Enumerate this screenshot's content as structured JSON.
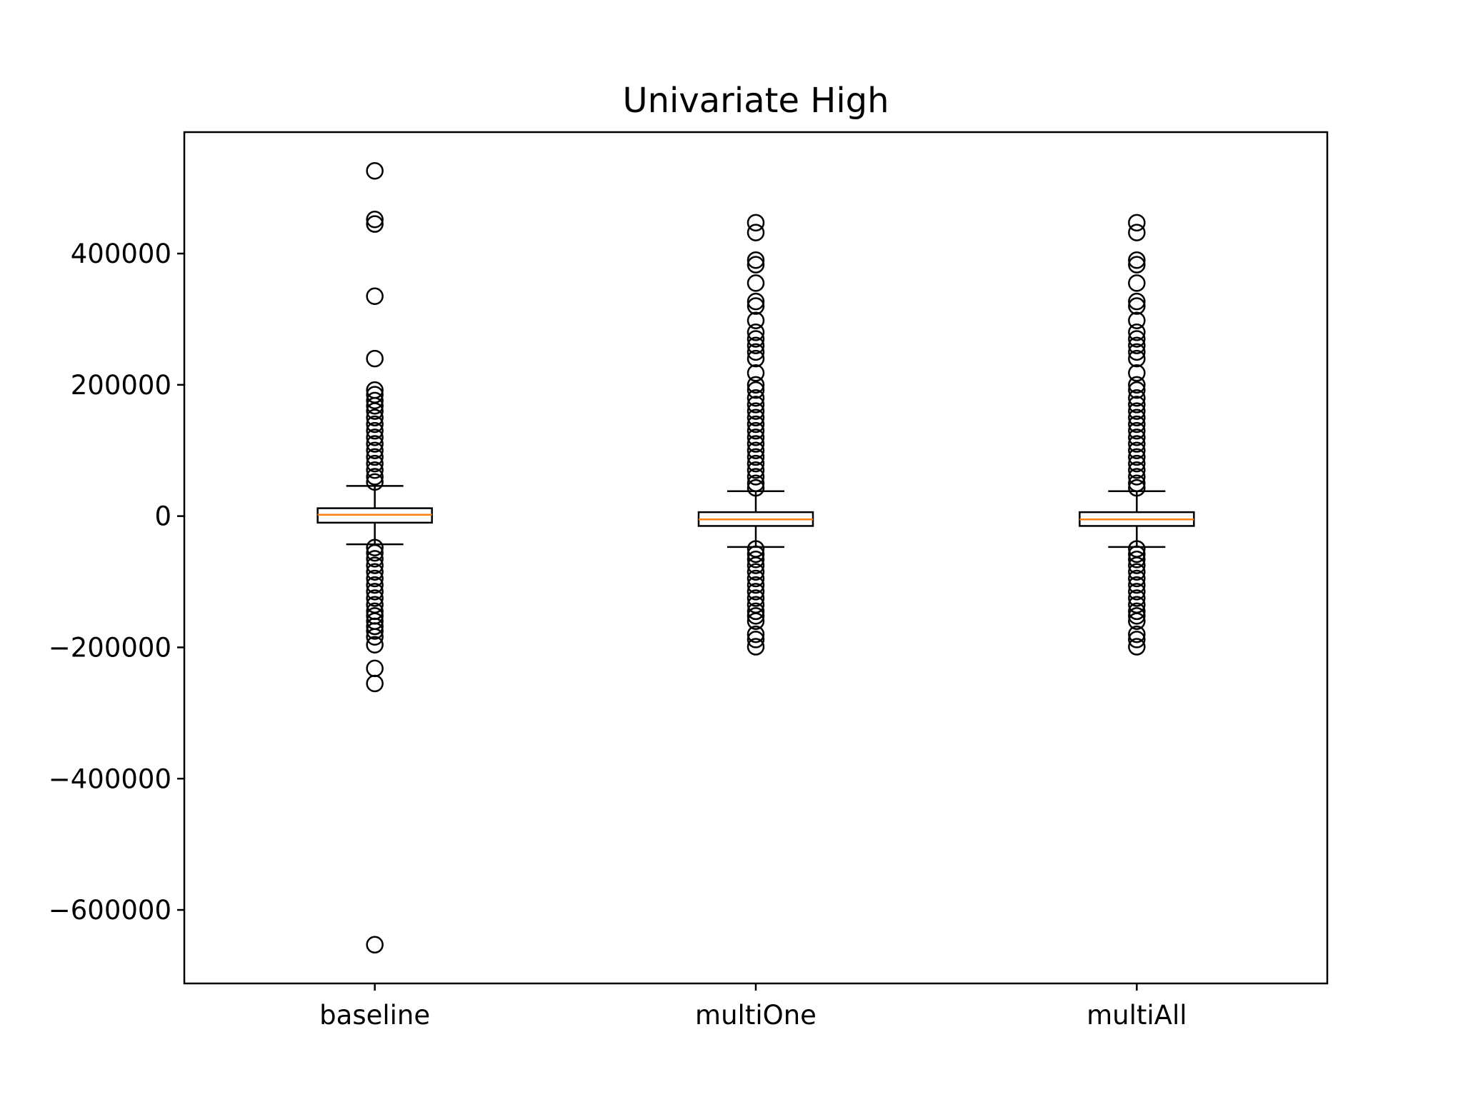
{
  "chart_data": {
    "type": "box",
    "title": "Univariate High",
    "xlabel": "",
    "ylabel": "",
    "categories": [
      "baseline",
      "multiOne",
      "multiAll"
    ],
    "ylim": [
      -712000,
      585000
    ],
    "yticks": [
      400000,
      200000,
      0,
      -200000,
      -400000,
      -600000
    ],
    "ytick_labels": [
      "400000",
      "200000",
      "0",
      "−200000",
      "−400000",
      "−600000"
    ],
    "grid": false,
    "colors": {
      "box": "#000000",
      "median": "#ff7f0e",
      "flier": "#000000"
    },
    "boxes": [
      {
        "name": "baseline",
        "q1": -10000,
        "median": 2000,
        "q3": 12000,
        "whisker_low": -43000,
        "whisker_high": 46000,
        "fliers_high": [
          526000,
          452000,
          445000,
          335000,
          240000,
          192000,
          185000,
          176000,
          168000,
          160000,
          150000,
          140000,
          130000,
          120000,
          110000,
          100000,
          90000,
          80000,
          70000,
          60000,
          52000
        ],
        "fliers_low": [
          -48000,
          -56000,
          -65000,
          -75000,
          -85000,
          -95000,
          -105000,
          -115000,
          -125000,
          -135000,
          -145000,
          -152000,
          -160000,
          -168000,
          -175000,
          -184000,
          -196000,
          -232000,
          -255000,
          -653000
        ]
      },
      {
        "name": "multiOne",
        "q1": -15000,
        "median": -5000,
        "q3": 6000,
        "whisker_low": -47000,
        "whisker_high": 38000,
        "fliers_high": [
          447000,
          432000,
          390000,
          383000,
          355000,
          327000,
          320000,
          298000,
          280000,
          270000,
          260000,
          250000,
          240000,
          218000,
          200000,
          192000,
          180000,
          170000,
          160000,
          150000,
          140000,
          130000,
          120000,
          110000,
          100000,
          90000,
          80000,
          70000,
          60000,
          50000,
          43000
        ],
        "fliers_low": [
          -50000,
          -58000,
          -66000,
          -75000,
          -85000,
          -95000,
          -105000,
          -115000,
          -125000,
          -135000,
          -145000,
          -152000,
          -160000,
          -180000,
          -188000,
          -199000
        ]
      },
      {
        "name": "multiAll",
        "q1": -15000,
        "median": -5000,
        "q3": 6000,
        "whisker_low": -47000,
        "whisker_high": 38000,
        "fliers_high": [
          447000,
          432000,
          390000,
          383000,
          355000,
          327000,
          320000,
          298000,
          280000,
          270000,
          260000,
          250000,
          240000,
          218000,
          200000,
          192000,
          180000,
          170000,
          160000,
          150000,
          140000,
          130000,
          120000,
          110000,
          100000,
          90000,
          80000,
          70000,
          60000,
          50000,
          43000
        ],
        "fliers_low": [
          -50000,
          -58000,
          -66000,
          -75000,
          -85000,
          -95000,
          -105000,
          -115000,
          -125000,
          -135000,
          -145000,
          -152000,
          -160000,
          -180000,
          -188000,
          -199000
        ]
      }
    ]
  }
}
